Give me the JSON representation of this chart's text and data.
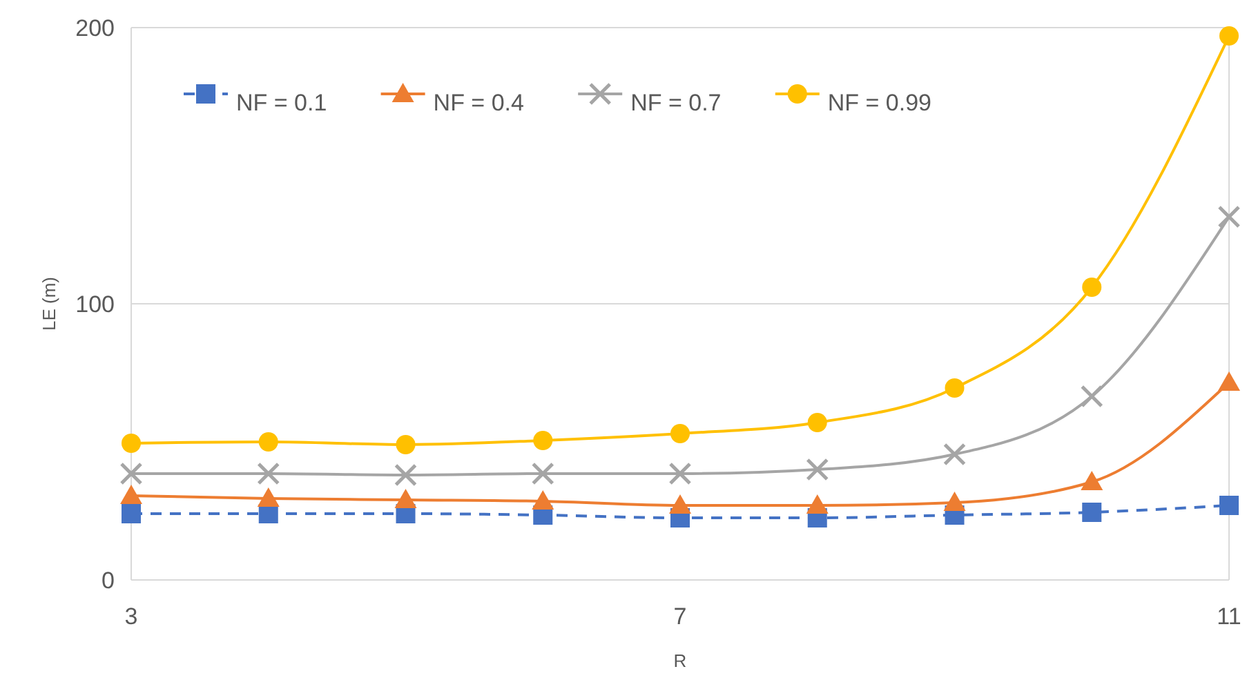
{
  "chart_data": {
    "type": "line",
    "xlabel": "R",
    "ylabel": "LE (m)",
    "x": [
      3,
      4,
      5,
      6,
      7,
      8,
      9,
      10,
      11
    ],
    "xlim": [
      3,
      11
    ],
    "xticks": [
      3,
      7,
      11
    ],
    "ylim": [
      0,
      200
    ],
    "yticks": [
      0,
      100,
      200
    ],
    "grid": "y",
    "legend": "top left",
    "series": [
      {
        "name": "NF = 0.1",
        "color": "#4472c4",
        "marker": "square",
        "line_style": "dashed",
        "values": [
          24,
          24,
          24,
          23.5,
          22.5,
          22.5,
          23.5,
          24.5,
          27
        ]
      },
      {
        "name": "NF = 0.4",
        "color": "#ed7d31",
        "marker": "triangle",
        "line_style": "solid",
        "values": [
          30.5,
          29.5,
          29,
          28.5,
          27,
          27,
          28,
          35.5,
          71.5
        ]
      },
      {
        "name": "NF = 0.7",
        "color": "#a5a5a5",
        "marker": "cross",
        "line_style": "solid",
        "values": [
          38.5,
          38.5,
          38,
          38.5,
          38.5,
          40,
          45.5,
          66.5,
          131.5
        ]
      },
      {
        "name": "NF = 0.99",
        "color": "#ffc000",
        "marker": "circle",
        "line_style": "solid",
        "values": [
          49.5,
          50,
          49,
          50.5,
          53,
          57,
          69.5,
          106,
          197
        ]
      }
    ]
  }
}
